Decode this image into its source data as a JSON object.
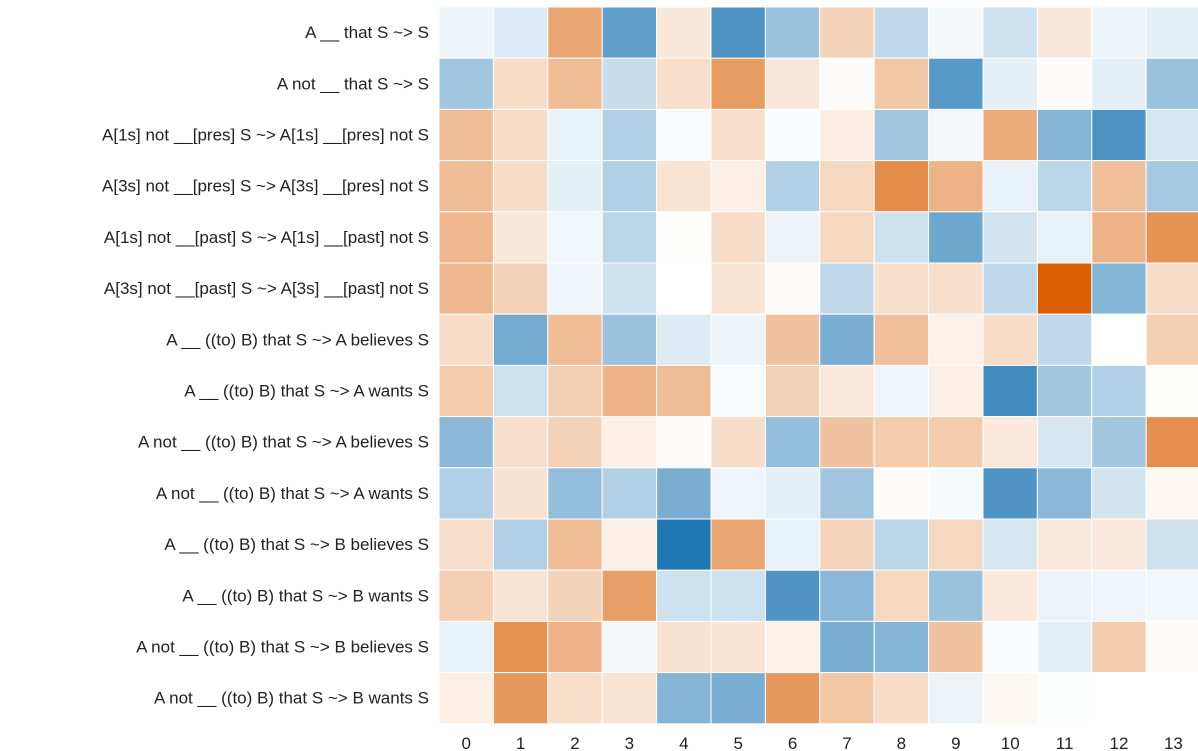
{
  "chart_data": {
    "type": "heatmap",
    "title": "",
    "xlabel": "",
    "ylabel": "",
    "x_categories": [
      "0",
      "1",
      "2",
      "3",
      "4",
      "5",
      "6",
      "7",
      "8",
      "9",
      "10",
      "11",
      "12",
      "13"
    ],
    "y_categories": [
      "A __ that S ~> S",
      "A not __ that S ~> S",
      "A[1s] not __[pres] S ~> A[1s] __[pres] not S",
      "A[3s] not __[pres] S ~> A[3s] __[pres] not S",
      "A[1s] not __[past] S ~> A[1s] __[past] not S",
      "A[3s] not __[past] S ~> A[3s] __[past] not S",
      "A __ ((to) B) that S ~> A believes S",
      "A __ ((to) B) that S ~> A wants S",
      "A not __ ((to) B) that S ~> A believes S",
      "A not __ ((to) B) that S ~> A wants S",
      "A __ ((to) B) that S ~> B believes S",
      "A __ ((to) B) that S ~> B wants S",
      "A not __ ((to) B) that S ~> B believes S",
      "A not __ ((to) B) that S ~> B wants S"
    ],
    "values": [
      [
        -0.08,
        -0.15,
        0.55,
        -0.7,
        0.15,
        -0.8,
        -0.45,
        0.28,
        -0.28,
        -0.05,
        -0.22,
        0.15,
        -0.08,
        -0.12
      ],
      [
        -0.42,
        0.22,
        0.42,
        -0.25,
        0.2,
        0.62,
        0.15,
        0.02,
        0.35,
        -0.75,
        -0.12,
        0.02,
        -0.12,
        -0.45
      ],
      [
        0.42,
        0.22,
        -0.1,
        -0.35,
        -0.03,
        0.2,
        -0.02,
        0.12,
        -0.42,
        -0.05,
        0.52,
        -0.55,
        -0.8,
        -0.18
      ],
      [
        0.42,
        0.22,
        -0.12,
        -0.35,
        0.17,
        0.1,
        -0.35,
        0.25,
        0.72,
        0.48,
        -0.1,
        -0.3,
        0.4,
        -0.4
      ],
      [
        0.45,
        0.15,
        -0.06,
        -0.3,
        0.01,
        0.22,
        -0.08,
        0.25,
        -0.22,
        -0.65,
        -0.2,
        -0.1,
        0.48,
        0.68
      ],
      [
        0.45,
        0.28,
        -0.07,
        -0.22,
        0.0,
        0.17,
        0.03,
        -0.28,
        0.2,
        0.2,
        -0.28,
        1.0,
        -0.55,
        0.22
      ],
      [
        0.22,
        -0.62,
        0.42,
        -0.45,
        -0.15,
        -0.08,
        0.38,
        -0.6,
        0.4,
        0.08,
        0.22,
        -0.28,
        0.0,
        0.3
      ],
      [
        0.32,
        -0.22,
        0.3,
        0.48,
        0.42,
        -0.03,
        0.28,
        0.14,
        -0.07,
        0.1,
        -0.85,
        -0.42,
        -0.35,
        0.01
      ],
      [
        -0.52,
        0.2,
        0.28,
        0.1,
        0.02,
        0.22,
        -0.48,
        0.38,
        0.32,
        0.32,
        0.14,
        -0.18,
        -0.42,
        0.7
      ],
      [
        -0.35,
        0.18,
        -0.48,
        -0.35,
        -0.6,
        -0.07,
        -0.12,
        -0.42,
        0.03,
        -0.04,
        -0.78,
        -0.52,
        -0.2,
        0.05
      ],
      [
        0.2,
        -0.35,
        0.42,
        0.1,
        -1.0,
        0.55,
        -0.1,
        0.27,
        -0.3,
        0.25,
        -0.18,
        0.14,
        0.14,
        -0.22
      ],
      [
        0.3,
        0.17,
        0.28,
        0.6,
        -0.22,
        -0.22,
        -0.78,
        -0.52,
        0.25,
        -0.45,
        0.14,
        -0.08,
        -0.07,
        -0.06
      ],
      [
        -0.1,
        0.68,
        0.48,
        -0.05,
        0.18,
        0.17,
        0.08,
        -0.6,
        -0.55,
        0.38,
        -0.02,
        -0.12,
        0.32,
        0.03
      ],
      [
        0.1,
        0.65,
        0.2,
        0.17,
        -0.55,
        -0.6,
        0.65,
        0.35,
        0.22,
        -0.08,
        0.05,
        -0.01,
        0.0,
        0.0
      ]
    ],
    "colormap": {
      "negative": "#1f77b4",
      "zero": "#ffffff",
      "positive": "#d95f02"
    },
    "grid": false,
    "legend": "none"
  }
}
